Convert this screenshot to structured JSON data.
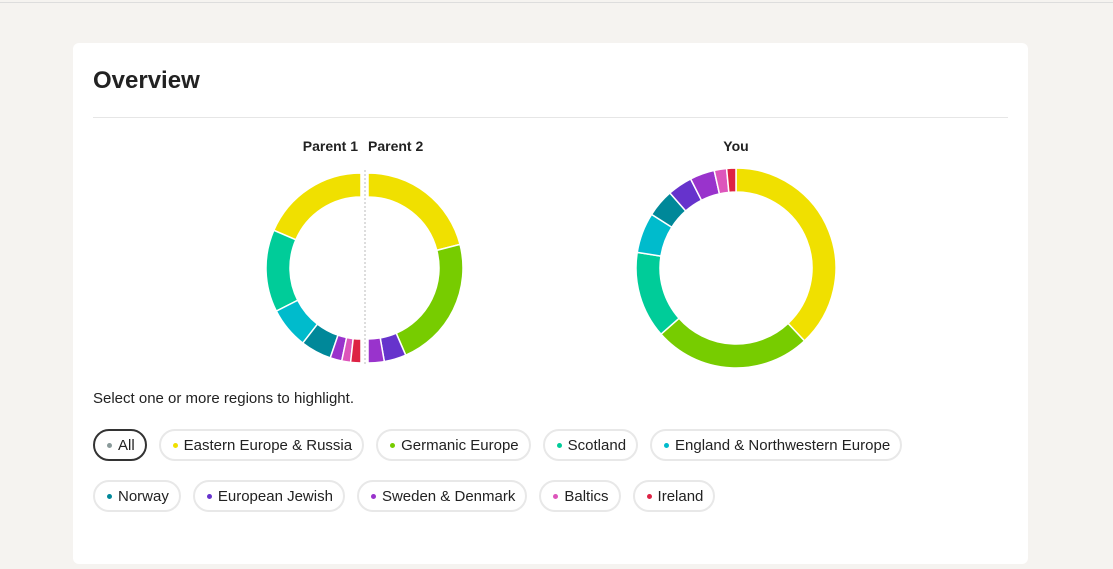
{
  "header": {
    "title": "Overview"
  },
  "chart_data": [
    {
      "type": "donut",
      "title": "Parent 1",
      "half": "left",
      "categories": [
        "Eastern Europe & Russia",
        "Scotland",
        "England & Northwestern Europe",
        "Norway",
        "Sweden & Denmark",
        "Baltics",
        "Ireland"
      ],
      "colors": [
        "#f0e000",
        "#00cc99",
        "#00bbcc",
        "#008899",
        "#9933cc",
        "#dd55bb",
        "#dd2244"
      ],
      "values": [
        37,
        28,
        14,
        10.5,
        4,
        3,
        3.5
      ]
    },
    {
      "type": "donut",
      "title": "Parent 2",
      "half": "right",
      "categories": [
        "Eastern Europe & Russia",
        "Germanic Europe",
        "European Jewish",
        "Sweden & Denmark"
      ],
      "colors": [
        "#f0e000",
        "#77cc00",
        "#6633cc",
        "#9933cc"
      ],
      "values": [
        42,
        45,
        7.5,
        5.5
      ]
    },
    {
      "type": "donut",
      "title": "You",
      "half": "none",
      "categories": [
        "Eastern Europe & Russia",
        "Germanic Europe",
        "Scotland",
        "England & Northwestern Europe",
        "Norway",
        "European Jewish",
        "Sweden & Denmark",
        "Baltics",
        "Ireland"
      ],
      "colors": [
        "#f0e000",
        "#77cc00",
        "#00cc99",
        "#00bbcc",
        "#008899",
        "#6633cc",
        "#9933cc",
        "#dd55bb",
        "#dd2244"
      ],
      "values": [
        38,
        25.5,
        14,
        6.5,
        4.5,
        4,
        4,
        2,
        1.5
      ]
    }
  ],
  "filters": {
    "prompt": "Select one or more regions to highlight.",
    "items": [
      {
        "label": "All",
        "color": "#8a9a9a",
        "selected": true
      },
      {
        "label": "Eastern Europe & Russia",
        "color": "#f0e000",
        "selected": false
      },
      {
        "label": "Germanic Europe",
        "color": "#77cc00",
        "selected": false
      },
      {
        "label": "Scotland",
        "color": "#00cc99",
        "selected": false
      },
      {
        "label": "England & Northwestern Europe",
        "color": "#00bbcc",
        "selected": false
      },
      {
        "label": "Norway",
        "color": "#008899",
        "selected": false
      },
      {
        "label": "European Jewish",
        "color": "#6633cc",
        "selected": false
      },
      {
        "label": "Sweden & Denmark",
        "color": "#9933cc",
        "selected": false
      },
      {
        "label": "Baltics",
        "color": "#dd55bb",
        "selected": false
      },
      {
        "label": "Ireland",
        "color": "#dd2244",
        "selected": false
      }
    ]
  }
}
